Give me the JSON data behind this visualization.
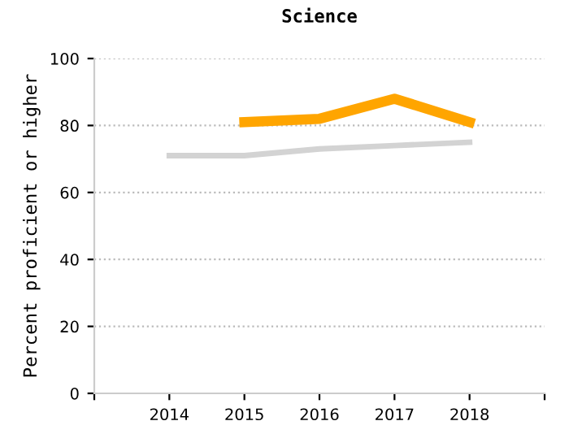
{
  "chart_data": {
    "type": "line",
    "title": "Science",
    "ylabel": "Percent proficient or higher",
    "x": [
      2014,
      2015,
      2016,
      2017,
      2018
    ],
    "series": [
      {
        "color": "#d3d3d3",
        "values": [
          71,
          71,
          73,
          74,
          75
        ]
      },
      {
        "color": "#ffa500",
        "values": [
          null,
          81,
          82,
          88,
          81
        ]
      }
    ],
    "xlim": [
      2013,
      2019
    ],
    "xticks": [
      {
        "value": 2013,
        "label": null
      },
      2014,
      2015,
      2016,
      2017,
      2018,
      {
        "value": 2019,
        "label": null
      }
    ],
    "ylim": [
      0,
      100
    ],
    "yticks": [
      0,
      20,
      40,
      60,
      80,
      100
    ],
    "grid": "y",
    "legend": false,
    "marker": "none",
    "line_style": "solid"
  }
}
